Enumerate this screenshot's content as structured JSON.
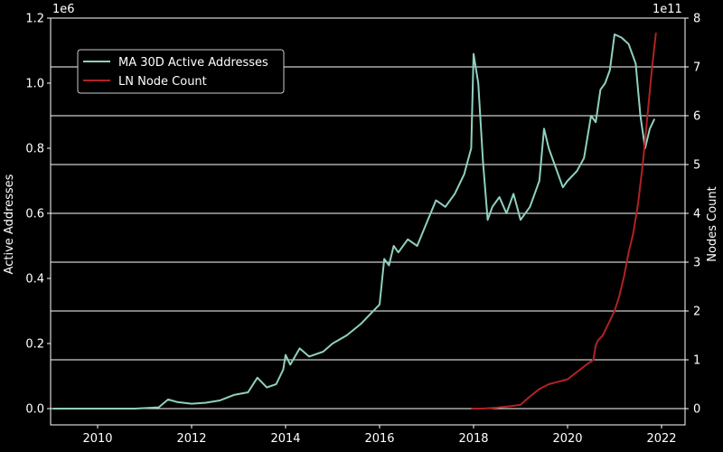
{
  "chart_data": {
    "type": "line",
    "title": "",
    "xlabel": "",
    "ylabel_left": "Active Addresses",
    "ylabel_right": "Nodes Count",
    "y_left_offset_text": "1e6",
    "y_right_offset_text": "1e11",
    "xlim": [
      2009.0,
      2022.5
    ],
    "ylim_left": [
      -0.05,
      1.2
    ],
    "ylim_right": [
      -0.333,
      8
    ],
    "x_ticks": [
      2010,
      2012,
      2014,
      2016,
      2018,
      2020,
      2022
    ],
    "x_tick_labels": [
      "2010",
      "2012",
      "2014",
      "2016",
      "2018",
      "2020",
      "2022"
    ],
    "y_left_ticks": [
      0.0,
      0.2,
      0.4,
      0.6,
      0.8,
      1.0,
      1.2
    ],
    "y_left_tick_labels": [
      "0.0",
      "0.2",
      "0.4",
      "0.6",
      "0.8",
      "1.0",
      "1.2"
    ],
    "y_right_ticks": [
      0,
      1,
      2,
      3,
      4,
      5,
      6,
      7,
      8
    ],
    "y_right_tick_labels": [
      "0",
      "1",
      "2",
      "3",
      "4",
      "5",
      "6",
      "7",
      "8"
    ],
    "grid": "horizontal, right axis",
    "legend_position": "upper-left",
    "series": [
      {
        "name": "MA 30D Active Addresses",
        "axis": "left",
        "color": "#8fd0c0",
        "points": [
          [
            2009.05,
            0.0
          ],
          [
            2010.0,
            0.0
          ],
          [
            2010.8,
            0.0
          ],
          [
            2011.3,
            0.004
          ],
          [
            2011.5,
            0.028
          ],
          [
            2011.7,
            0.02
          ],
          [
            2012.0,
            0.015
          ],
          [
            2012.3,
            0.018
          ],
          [
            2012.6,
            0.025
          ],
          [
            2012.9,
            0.042
          ],
          [
            2013.2,
            0.05
          ],
          [
            2013.4,
            0.095
          ],
          [
            2013.6,
            0.065
          ],
          [
            2013.8,
            0.075
          ],
          [
            2013.95,
            0.12
          ],
          [
            2014.0,
            0.165
          ],
          [
            2014.1,
            0.135
          ],
          [
            2014.2,
            0.16
          ],
          [
            2014.3,
            0.185
          ],
          [
            2014.5,
            0.16
          ],
          [
            2014.8,
            0.175
          ],
          [
            2015.0,
            0.2
          ],
          [
            2015.3,
            0.225
          ],
          [
            2015.6,
            0.26
          ],
          [
            2015.8,
            0.29
          ],
          [
            2016.0,
            0.32
          ],
          [
            2016.1,
            0.46
          ],
          [
            2016.2,
            0.44
          ],
          [
            2016.3,
            0.5
          ],
          [
            2016.4,
            0.48
          ],
          [
            2016.6,
            0.52
          ],
          [
            2016.8,
            0.5
          ],
          [
            2017.0,
            0.57
          ],
          [
            2017.2,
            0.64
          ],
          [
            2017.4,
            0.62
          ],
          [
            2017.6,
            0.66
          ],
          [
            2017.8,
            0.72
          ],
          [
            2017.95,
            0.8
          ],
          [
            2018.0,
            1.09
          ],
          [
            2018.1,
            1.0
          ],
          [
            2018.2,
            0.76
          ],
          [
            2018.3,
            0.58
          ],
          [
            2018.4,
            0.62
          ],
          [
            2018.55,
            0.65
          ],
          [
            2018.7,
            0.6
          ],
          [
            2018.85,
            0.66
          ],
          [
            2019.0,
            0.58
          ],
          [
            2019.2,
            0.62
          ],
          [
            2019.4,
            0.7
          ],
          [
            2019.5,
            0.86
          ],
          [
            2019.6,
            0.8
          ],
          [
            2019.8,
            0.72
          ],
          [
            2019.9,
            0.68
          ],
          [
            2020.0,
            0.7
          ],
          [
            2020.2,
            0.73
          ],
          [
            2020.35,
            0.77
          ],
          [
            2020.5,
            0.9
          ],
          [
            2020.6,
            0.88
          ],
          [
            2020.7,
            0.98
          ],
          [
            2020.8,
            1.0
          ],
          [
            2020.9,
            1.04
          ],
          [
            2021.0,
            1.15
          ],
          [
            2021.15,
            1.14
          ],
          [
            2021.3,
            1.12
          ],
          [
            2021.45,
            1.06
          ],
          [
            2021.55,
            0.9
          ],
          [
            2021.65,
            0.8
          ],
          [
            2021.75,
            0.86
          ],
          [
            2021.85,
            0.89
          ]
        ]
      },
      {
        "name": "LN Node Count",
        "axis": "right",
        "color": "#b22222",
        "points": [
          [
            2017.95,
            0.0
          ],
          [
            2018.2,
            0.0
          ],
          [
            2018.5,
            0.02
          ],
          [
            2018.8,
            0.05
          ],
          [
            2019.0,
            0.08
          ],
          [
            2019.2,
            0.25
          ],
          [
            2019.4,
            0.4
          ],
          [
            2019.6,
            0.5
          ],
          [
            2019.8,
            0.55
          ],
          [
            2020.0,
            0.6
          ],
          [
            2020.2,
            0.75
          ],
          [
            2020.4,
            0.9
          ],
          [
            2020.55,
            1.0
          ],
          [
            2020.6,
            1.3
          ],
          [
            2020.65,
            1.4
          ],
          [
            2020.75,
            1.5
          ],
          [
            2020.9,
            1.8
          ],
          [
            2021.0,
            2.0
          ],
          [
            2021.1,
            2.3
          ],
          [
            2021.2,
            2.7
          ],
          [
            2021.3,
            3.2
          ],
          [
            2021.4,
            3.6
          ],
          [
            2021.5,
            4.2
          ],
          [
            2021.6,
            5.0
          ],
          [
            2021.7,
            6.0
          ],
          [
            2021.8,
            7.0
          ],
          [
            2021.88,
            7.7
          ]
        ]
      }
    ]
  }
}
